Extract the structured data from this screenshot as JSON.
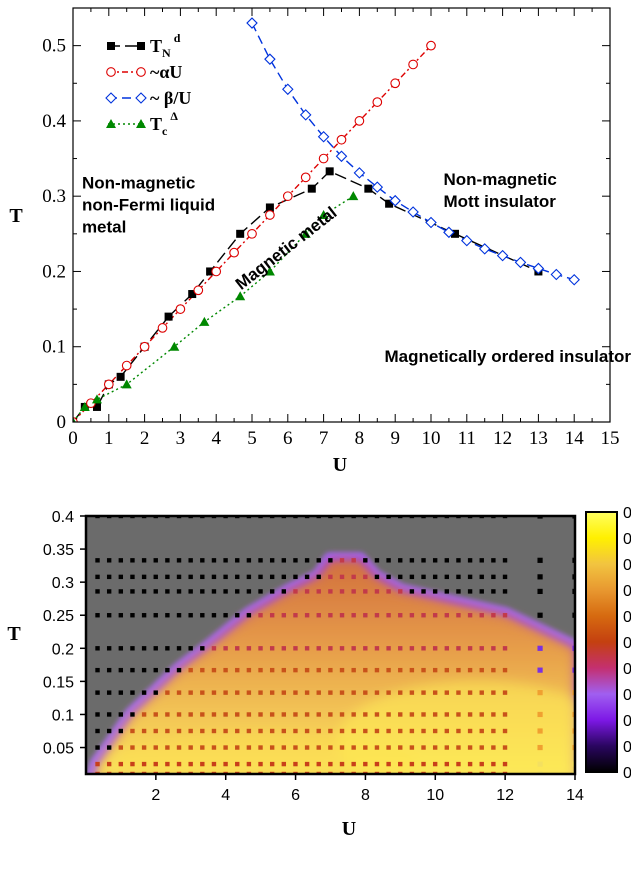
{
  "chart_data": [
    {
      "type": "line",
      "xlabel": "U",
      "ylabel": "T",
      "xlim": [
        0,
        15
      ],
      "ylim": [
        0,
        0.55
      ],
      "xticks": [
        "0",
        "1",
        "2",
        "3",
        "4",
        "5",
        "6",
        "7",
        "8",
        "9",
        "10",
        "11",
        "12",
        "13",
        "14",
        "15"
      ],
      "yticks": [
        "0",
        "0.1",
        "0.2",
        "0.3",
        "0.4",
        "0.5"
      ],
      "legend_position": "top-left",
      "series": [
        {
          "name": "T",
          "name_sub": "N",
          "name_sup": "d",
          "color": "#000000",
          "marker": "square-filled",
          "line": "long-dash",
          "x": [
            0,
            0.33,
            0.67,
            1,
            1.33,
            2,
            2.67,
            3.33,
            3.83,
            4.67,
            5.5,
            6.67,
            7.17,
            8.25,
            8.83,
            10.67,
            13
          ],
          "y": [
            0,
            0.02,
            0.02,
            0.05,
            0.06,
            0.1,
            0.14,
            0.17,
            0.2,
            0.25,
            0.285,
            0.31,
            0.333,
            0.31,
            0.29,
            0.25,
            0.2
          ]
        },
        {
          "name": "~αU",
          "color": "#dd0000",
          "marker": "circle-open",
          "line": "dash-dot",
          "x": [
            0,
            0.5,
            1,
            1.5,
            2,
            2.5,
            3,
            3.5,
            4,
            4.5,
            5,
            5.5,
            6,
            6.5,
            7,
            7.5,
            8,
            8.5,
            9,
            9.5,
            10
          ],
          "y": [
            0,
            0.025,
            0.05,
            0.075,
            0.1,
            0.125,
            0.15,
            0.175,
            0.2,
            0.225,
            0.25,
            0.275,
            0.3,
            0.325,
            0.35,
            0.375,
            0.4,
            0.425,
            0.45,
            0.475,
            0.5
          ]
        },
        {
          "name": "~ β/U",
          "color": "#0033dd",
          "marker": "diamond-open",
          "line": "dash",
          "x": [
            5,
            5.5,
            6,
            6.5,
            7,
            7.5,
            8,
            8.5,
            9,
            9.5,
            10,
            10.5,
            11,
            11.5,
            12,
            12.5,
            13,
            13.5,
            14
          ],
          "y": [
            0.53,
            0.482,
            0.442,
            0.408,
            0.379,
            0.353,
            0.331,
            0.312,
            0.294,
            0.279,
            0.265,
            0.252,
            0.241,
            0.23,
            0.221,
            0.212,
            0.204,
            0.196,
            0.189
          ]
        },
        {
          "name": "T",
          "name_sub": "c",
          "name_sup": "Δ",
          "color": "#008800",
          "marker": "triangle-filled",
          "line": "dotted",
          "x": [
            0,
            0.33,
            0.67,
            1.5,
            2.83,
            3.67,
            4.67,
            5.5,
            6.5,
            7,
            7.83
          ],
          "y": [
            0,
            0.02,
            0.03,
            0.05,
            0.1,
            0.133,
            0.167,
            0.2,
            0.25,
            0.275,
            0.3
          ]
        }
      ],
      "annotations": [
        {
          "lines": [
            "Non-magnetic",
            "non-Fermi liquid",
            "metal"
          ],
          "x": 0.25,
          "y": 0.31
        },
        {
          "lines": [
            "Non-magnetic",
            "Mott insulator"
          ],
          "x": 10.35,
          "y": 0.315
        },
        {
          "lines": [
            "Magnetic metal"
          ],
          "x": 6.05,
          "y": 0.225,
          "rotate": -38
        },
        {
          "lines": [
            "Magnetically ordered insulator"
          ],
          "x": 8.7,
          "y": 0.08
        }
      ]
    },
    {
      "type": "heatmap",
      "xlabel": "U",
      "ylabel": "T",
      "xlim": [
        0,
        14
      ],
      "ylim": [
        0.01,
        0.4
      ],
      "xticks": [
        "2",
        "4",
        "6",
        "8",
        "10",
        "12",
        "14"
      ],
      "yticks": [
        "0.05",
        "0.1",
        "0.15",
        "0.2",
        "0.25",
        "0.3",
        "0.35",
        "0.4"
      ],
      "colorbar_ticks": [
        "0",
        "0",
        "0",
        "0",
        "0",
        "0",
        "0",
        "0",
        "0",
        "0",
        "0"
      ],
      "colormap": [
        "#000000",
        "#2a0660",
        "#7d18e6",
        "#a05ff0",
        "#c43070",
        "#c44010",
        "#d66a10",
        "#e89830",
        "#f2c440",
        "#fff000",
        "#ffff60"
      ],
      "background": "#6b6b6b",
      "grid_T": [
        0.01,
        0.025,
        0.05,
        0.075,
        0.1,
        0.133,
        0.167,
        0.2,
        0.25,
        0.286,
        0.308,
        0.333,
        0.4
      ],
      "phase_boundary": {
        "T": [
          0.01,
          0.025,
          0.05,
          0.075,
          0.1,
          0.133,
          0.167,
          0.2,
          0.25,
          0.286,
          0.308,
          0.333
        ],
        "U_low": [
          0.25,
          0.33,
          0.67,
          1,
          1.33,
          2,
          2.67,
          3.5,
          4.67,
          5.83,
          6.67,
          7
        ],
        "U_high": [
          14,
          14,
          14,
          14,
          14,
          14,
          14,
          14,
          12,
          9,
          8.25,
          7.83
        ]
      }
    }
  ]
}
